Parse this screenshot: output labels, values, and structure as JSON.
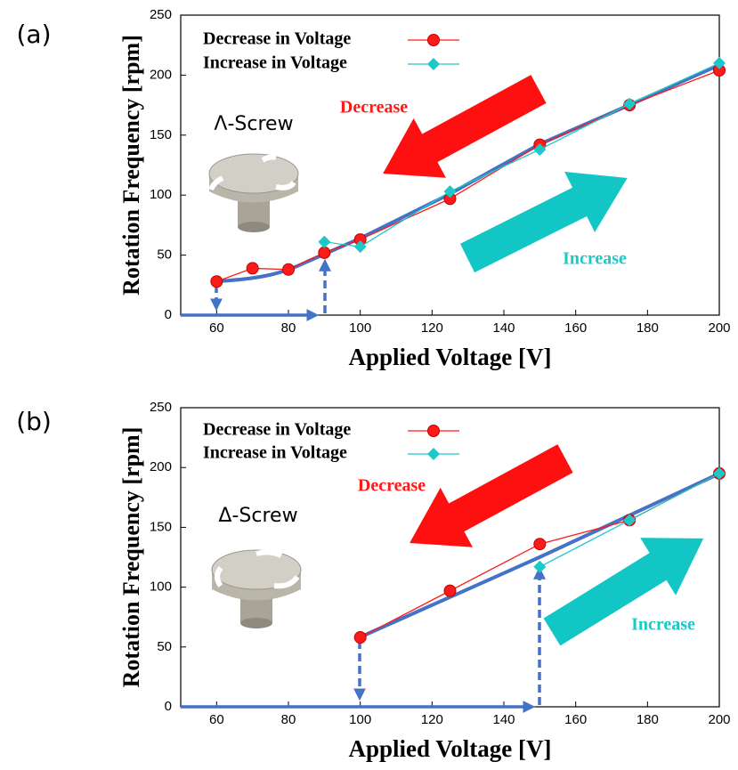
{
  "chart_data": [
    {
      "type": "line",
      "panel_label": "(a)",
      "xlabel": "Applied Voltage [V]",
      "ylabel": "Rotation Frequency [rpm]",
      "xlim": [
        50,
        200
      ],
      "xticks": [
        60,
        80,
        100,
        120,
        140,
        160,
        180,
        200
      ],
      "ylim": [
        0,
        250
      ],
      "yticks": [
        0,
        50,
        100,
        150,
        200,
        250
      ],
      "series": [
        {
          "name": "Decrease in Voltage",
          "color": "#ff1a1a",
          "marker": "circle",
          "x": [
            60,
            70,
            80,
            90,
            100,
            125,
            150,
            175,
            200
          ],
          "values": [
            28,
            39,
            38,
            52,
            63,
            97,
            142,
            175,
            204
          ]
        },
        {
          "name": "Increase in Voltage",
          "color": "#1ec8c8",
          "marker": "diamond",
          "x": [
            90,
            100,
            125,
            150,
            175,
            200
          ],
          "values": [
            61,
            57,
            103,
            138,
            176,
            210
          ]
        }
      ],
      "annotations": [
        "Decrease",
        "Increase",
        "Λ-Screw"
      ]
    },
    {
      "type": "line",
      "panel_label": "(b)",
      "xlabel": "Applied Voltage [V]",
      "ylabel": "Rotation Frequency [rpm]",
      "xlim": [
        50,
        200
      ],
      "xticks": [
        60,
        80,
        100,
        120,
        140,
        160,
        180,
        200
      ],
      "ylim": [
        0,
        250
      ],
      "yticks": [
        0,
        50,
        100,
        150,
        200,
        250
      ],
      "series": [
        {
          "name": "Decrease in Voltage",
          "color": "#ff1a1a",
          "marker": "circle",
          "x": [
            100,
            125,
            150,
            175,
            200
          ],
          "values": [
            58,
            97,
            136,
            156,
            195
          ]
        },
        {
          "name": "Increase in Voltage",
          "color": "#1ec8c8",
          "marker": "diamond",
          "x": [
            150,
            175,
            200
          ],
          "values": [
            117,
            156,
            195
          ]
        }
      ],
      "annotations": [
        "Decrease",
        "Increase",
        "Δ-Screw"
      ]
    }
  ]
}
